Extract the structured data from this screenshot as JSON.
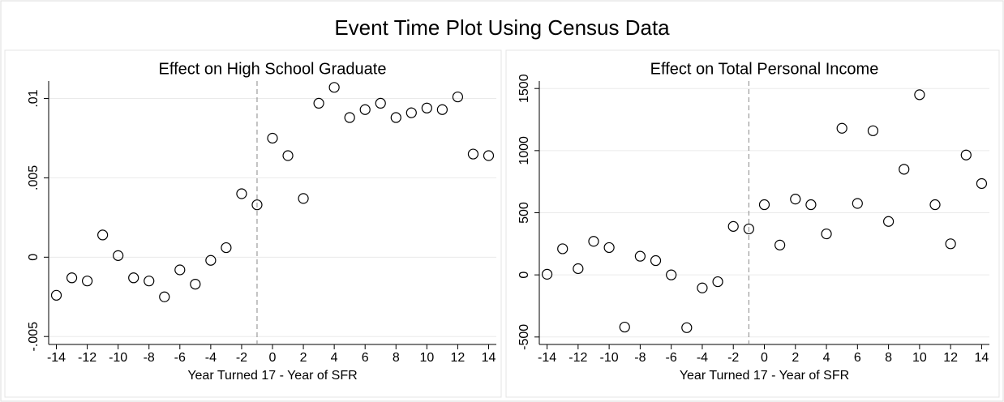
{
  "title": "Event Time Plot Using Census Data",
  "chart_data": [
    {
      "type": "scatter",
      "title": "Effect on High School Graduate",
      "x_label": "Year Turned 17 - Year of SFR",
      "x": [
        -14,
        -13,
        -12,
        -11,
        -10,
        -9,
        -8,
        -7,
        -6,
        -5,
        -4,
        -3,
        -2,
        -1,
        0,
        1,
        2,
        3,
        4,
        5,
        6,
        7,
        8,
        9,
        10,
        11,
        12,
        13,
        14
      ],
      "values": [
        -0.0024,
        -0.0013,
        -0.0015,
        0.0014,
        0.0001,
        -0.0013,
        -0.0015,
        -0.0025,
        -0.0008,
        -0.0017,
        -0.0002,
        0.0006,
        0.004,
        0.0033,
        0.0075,
        0.0064,
        0.0037,
        0.0097,
        0.0107,
        0.0088,
        0.0093,
        0.0097,
        0.0088,
        0.0091,
        0.0094,
        0.0093,
        0.0101,
        0.0065,
        0.0064
      ],
      "xlim": [
        -14.5,
        14.5
      ],
      "xticks": [
        -14,
        -12,
        -10,
        -8,
        -6,
        -4,
        -2,
        0,
        2,
        4,
        6,
        8,
        10,
        12,
        14
      ],
      "ylim": [
        -0.0055,
        0.0111
      ],
      "yticks": [
        {
          "value": -0.005,
          "label": "-.005"
        },
        0,
        {
          "value": 0.005,
          "label": ".005"
        },
        {
          "value": 0.01,
          "label": ".01"
        }
      ],
      "vline": -1,
      "grid": true,
      "color": "#000000"
    },
    {
      "type": "scatter",
      "title": "Effect on Total Personal Income",
      "x_label": "Year Turned 17 - Year of SFR",
      "x": [
        -14,
        -13,
        -12,
        -11,
        -10,
        -9,
        -8,
        -7,
        -6,
        -5,
        -4,
        -3,
        -2,
        -1,
        0,
        1,
        2,
        3,
        4,
        5,
        6,
        7,
        8,
        9,
        10,
        11,
        12,
        13,
        14
      ],
      "values": [
        5,
        210,
        50,
        270,
        220,
        -420,
        150,
        115,
        0,
        -425,
        -105,
        -55,
        390,
        370,
        565,
        240,
        610,
        565,
        330,
        1180,
        575,
        1160,
        430,
        850,
        1450,
        565,
        250,
        965,
        735
      ],
      "xlim": [
        -14.5,
        14.5
      ],
      "xticks": [
        -14,
        -12,
        -10,
        -8,
        -6,
        -4,
        -2,
        0,
        2,
        4,
        6,
        8,
        10,
        12,
        14
      ],
      "ylim": [
        -560,
        1560
      ],
      "yticks": [
        -500,
        0,
        500,
        1000,
        1500
      ],
      "vline": -1,
      "grid": true,
      "color": "#000000"
    }
  ]
}
